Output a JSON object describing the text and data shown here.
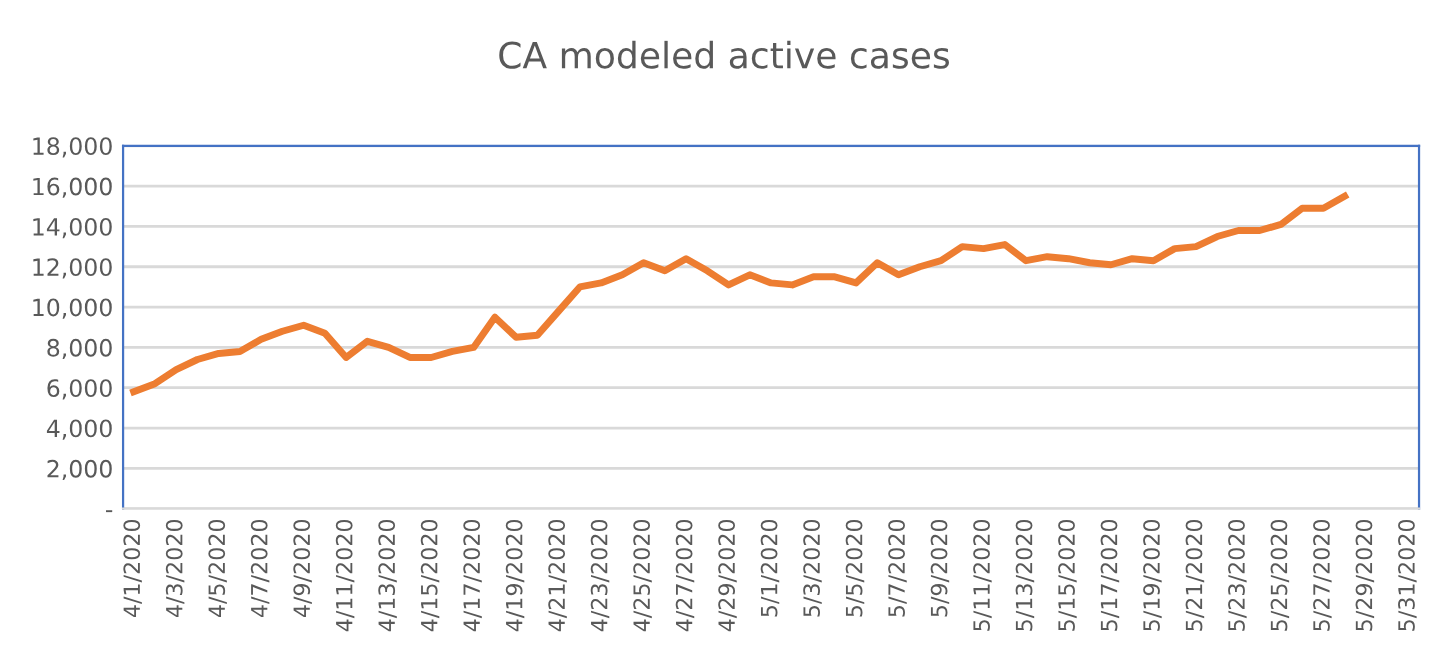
{
  "chart_data": {
    "type": "line",
    "title": "CA modeled active cases",
    "categories": [
      "4/1/2020",
      null,
      "4/3/2020",
      null,
      "4/5/2020",
      null,
      "4/7/2020",
      null,
      "4/9/2020",
      null,
      "4/11/2020",
      null,
      "4/13/2020",
      null,
      "4/15/2020",
      null,
      "4/17/2020",
      null,
      "4/19/2020",
      null,
      "4/21/2020",
      null,
      "4/23/2020",
      null,
      "4/25/2020",
      null,
      "4/27/2020",
      null,
      "4/29/2020",
      null,
      "5/1/2020",
      null,
      "5/3/2020",
      null,
      "5/5/2020",
      null,
      "5/7/2020",
      null,
      "5/9/2020",
      null,
      "5/11/2020",
      null,
      "5/13/2020",
      null,
      "5/15/2020",
      null,
      "5/17/2020",
      null,
      "5/19/2020",
      null,
      "5/21/2020",
      null,
      "5/23/2020",
      null,
      "5/25/2020",
      null,
      "5/27/2020",
      null,
      "5/29/2020",
      null,
      "5/31/2020"
    ],
    "series": [
      {
        "color": "#ed7d31",
        "values": [
          5800,
          6200,
          6900,
          7400,
          7700,
          7800,
          8400,
          8800,
          9100,
          8700,
          7500,
          8300,
          8000,
          7500,
          7500,
          7800,
          8000,
          9500,
          8500,
          8600,
          9800,
          11000,
          11200,
          11600,
          12200,
          11800,
          12400,
          11800,
          11100,
          11600,
          11200,
          11100,
          11500,
          11500,
          11200,
          12200,
          11600,
          12000,
          12300,
          13000,
          12900,
          13100,
          12300,
          12500,
          12400,
          12200,
          12100,
          12400,
          12300,
          12900,
          13000,
          13500,
          13800,
          13800,
          14100,
          14900,
          14900,
          15500,
          null,
          null,
          null
        ]
      }
    ],
    "ylim": [
      0,
      18000
    ],
    "yticks": [
      {
        "value": 0,
        "label": "-"
      },
      {
        "value": 2000,
        "label": "2,000"
      },
      {
        "value": 4000,
        "label": "4,000"
      },
      {
        "value": 6000,
        "label": "6,000"
      },
      {
        "value": 8000,
        "label": "8,000"
      },
      {
        "value": 10000,
        "label": "10,000"
      },
      {
        "value": 12000,
        "label": "12,000"
      },
      {
        "value": 14000,
        "label": "14,000"
      },
      {
        "value": 16000,
        "label": "16,000"
      },
      {
        "value": 18000,
        "label": "18,000"
      }
    ],
    "grid": "y",
    "marker": "none",
    "line_style": "solid"
  }
}
